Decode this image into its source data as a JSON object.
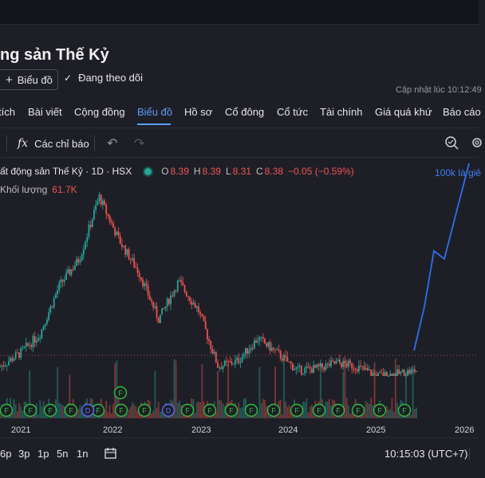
{
  "header": {
    "title": "ng sản Thế Kỷ",
    "chart_button": "Biểu đồ",
    "follow_label": "Đang theo dõi",
    "updated": "Cập nhật lúc  10:12:49"
  },
  "tabs": [
    {
      "label": "tích",
      "active": false
    },
    {
      "label": "Bài viết",
      "active": false
    },
    {
      "label": "Cộng đồng",
      "active": false
    },
    {
      "label": "Biểu đồ",
      "active": true
    },
    {
      "label": "Hồ sơ",
      "active": false
    },
    {
      "label": "Cổ đông",
      "active": false
    },
    {
      "label": "Cổ tức",
      "active": false
    },
    {
      "label": "Tài chính",
      "active": false
    },
    {
      "label": "Giá quá khứ",
      "active": false
    },
    {
      "label": "Báo cáo",
      "active": false
    }
  ],
  "toolbar": {
    "indicators_label": "Các chỉ báo",
    "fx_glyph": "fx",
    "undo_icon": "undo-icon",
    "redo_icon": "redo-icon"
  },
  "legend": {
    "symbol": "ất động sản Thế Kỷ · 1D · HSX",
    "o_label": "O",
    "o_value": "8.39",
    "h_label": "H",
    "h_value": "8.39",
    "l_label": "L",
    "l_value": "8.31",
    "c_label": "C",
    "c_value": "8.38",
    "change": "−0.05 (−0.59%)",
    "volume_label": "Khối lượng",
    "volume_value": "61.7K"
  },
  "annotation": "100k là giê",
  "markers": {
    "f_label": "F",
    "d_label": "D"
  },
  "xaxis": [
    "2021",
    "2022",
    "2023",
    "2024",
    "2025",
    "2026"
  ],
  "bottom": {
    "ranges": [
      "6p",
      "3p",
      "1p",
      "5n",
      "1n"
    ],
    "clock": "10:15:03 (UTC+7)"
  },
  "colors": {
    "up": "#26a69a",
    "down": "#ef5350",
    "accent": "#5b9cf6",
    "drawing": "#2e6ef0"
  },
  "chart_data": {
    "type": "candlestick",
    "x": [
      "2020-10",
      "2021-01",
      "2021-04",
      "2021-07",
      "2021-10",
      "2022-01",
      "2022-02",
      "2022-04",
      "2022-06",
      "2022-08",
      "2022-10",
      "2022-12",
      "2023-03",
      "2023-06",
      "2023-09",
      "2023-12",
      "2024-03",
      "2024-06",
      "2024-09",
      "2024-12",
      "2025-03",
      "2025-06"
    ],
    "close_relative": [
      0.05,
      0.12,
      0.22,
      0.48,
      0.62,
      0.95,
      0.72,
      0.55,
      0.3,
      0.5,
      0.35,
      0.05,
      0.08,
      0.2,
      0.12,
      0.03,
      0.04,
      0.07,
      0.05,
      0.0,
      0.01,
      0.03
    ],
    "last_close": 8.38,
    "drawing_projection": {
      "type": "line",
      "label": "100k là giê"
    }
  }
}
